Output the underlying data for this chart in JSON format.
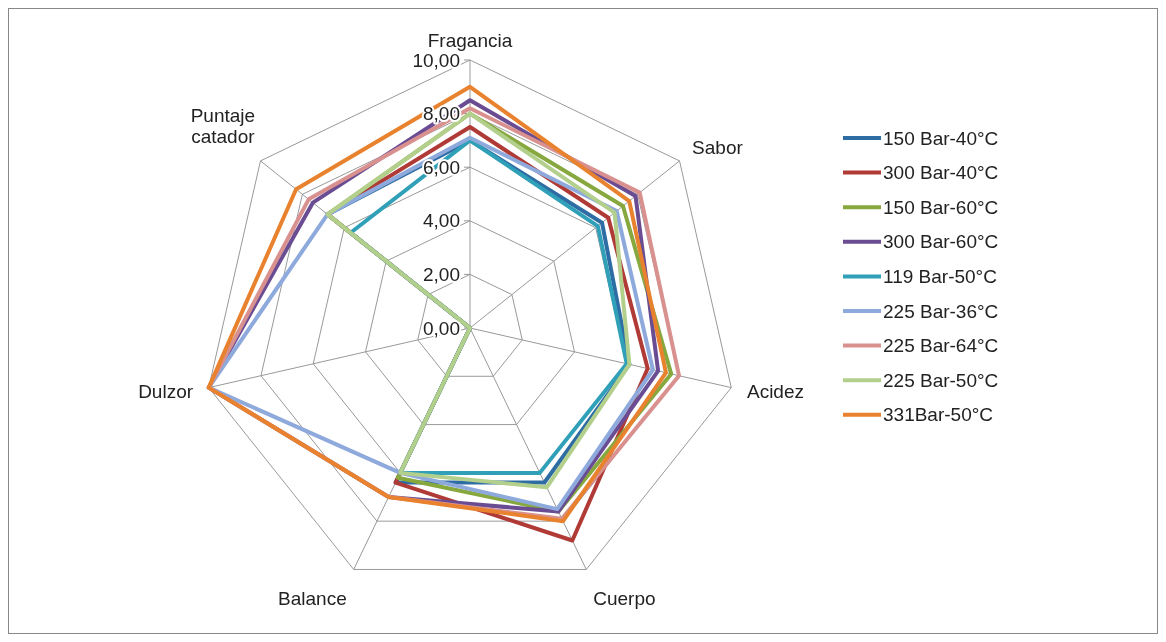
{
  "chart_data": {
    "type": "radar",
    "categories": [
      "Fragancia",
      "Sabor",
      "Acidez",
      "Cuerpo",
      "Balance",
      "Dulzor",
      "Puntaje catador"
    ],
    "ylim": [
      0,
      10
    ],
    "yticks": [
      {
        "value": 0,
        "label": "0,00"
      },
      {
        "value": 2,
        "label": "2,00"
      },
      {
        "value": 4,
        "label": "4,00"
      },
      {
        "value": 6,
        "label": "6,00"
      },
      {
        "value": 8,
        "label": "8,00"
      },
      {
        "value": 10,
        "label": "10,00"
      }
    ],
    "grid": true,
    "legend": "right",
    "marker": "none",
    "line_style": "solid",
    "series": [
      {
        "name": "150 Bar-40°C",
        "color": "#2e6ca4",
        "values": [
          7.0,
          6.3,
          6.1,
          6.4,
          6.4,
          0,
          6.8
        ]
      },
      {
        "name": "300 Bar-40°C",
        "color": "#b03a36",
        "values": [
          7.5,
          6.6,
          6.8,
          8.8,
          6.4,
          0,
          6.8
        ]
      },
      {
        "name": "150 Bar-60°C",
        "color": "#86a83e",
        "values": [
          8.0,
          7.3,
          7.7,
          7.6,
          6.2,
          0,
          6.8
        ]
      },
      {
        "name": "300 Bar-60°C",
        "color": "#6a4c93",
        "values": [
          8.5,
          7.9,
          7.2,
          7.6,
          7.0,
          10,
          7.5
        ]
      },
      {
        "name": "119 Bar-50°C",
        "color": "#2fa0b8",
        "values": [
          7.0,
          6.1,
          6.0,
          6.0,
          6.0,
          0,
          5.7
        ]
      },
      {
        "name": "225 Bar-36°C",
        "color": "#8ea9db",
        "values": [
          7.1,
          7.0,
          7.0,
          7.5,
          6.0,
          10,
          6.8
        ]
      },
      {
        "name": "225 Bar-64°C",
        "color": "#d9918f",
        "values": [
          8.2,
          8.1,
          8.0,
          7.9,
          7.0,
          10,
          7.7
        ]
      },
      {
        "name": "225 Bar-50°C",
        "color": "#b3cf8c",
        "values": [
          8.0,
          6.9,
          6.1,
          6.6,
          6.0,
          0,
          6.8
        ]
      },
      {
        "name": "331Bar-50°C",
        "color": "#e9822e",
        "values": [
          9.0,
          7.6,
          7.5,
          8.0,
          7.0,
          10,
          8.3
        ]
      }
    ]
  }
}
